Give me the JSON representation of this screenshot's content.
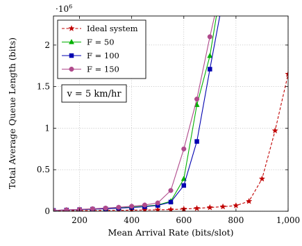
{
  "chart_data": {
    "type": "line",
    "title": "",
    "xlabel": "Mean Arrival Rate (bits/slot)",
    "ylabel": "Total Average Queue Length (bits)",
    "y_multiplier_label": "·10",
    "y_multiplier_exponent": "6",
    "xlim": [
      100,
      1000
    ],
    "ylim": [
      0,
      2.35
    ],
    "x_ticks": [
      200,
      400,
      600,
      800,
      1000
    ],
    "x_tick_labels": [
      "200",
      "400",
      "600",
      "800",
      "1,000"
    ],
    "y_ticks": [
      0,
      0.5,
      1,
      1.5,
      2
    ],
    "y_tick_labels": [
      "0",
      "0.5",
      "1",
      "1.5",
      "2"
    ],
    "grid": true,
    "legend_position": "top-left",
    "annotation": "v = 5 km/hr",
    "series": [
      {
        "name": "Ideal system",
        "color": "#c00000",
        "marker": "star",
        "dashed": true,
        "x": [
          100,
          150,
          200,
          250,
          300,
          350,
          400,
          450,
          500,
          550,
          600,
          650,
          700,
          750,
          800,
          850,
          900,
          950,
          1000
        ],
        "y": [
          0.005,
          0.007,
          0.008,
          0.01,
          0.011,
          0.012,
          0.013,
          0.015,
          0.017,
          0.02,
          0.027,
          0.035,
          0.045,
          0.055,
          0.068,
          0.12,
          0.39,
          0.97,
          1.65
        ]
      },
      {
        "name": "F = 50",
        "color": "#00b000",
        "marker": "triangle",
        "dashed": false,
        "x": [
          100,
          150,
          200,
          250,
          300,
          350,
          400,
          450,
          500,
          550,
          600,
          650,
          700,
          725
        ],
        "y": [
          0.01,
          0.015,
          0.02,
          0.025,
          0.032,
          0.04,
          0.05,
          0.06,
          0.075,
          0.12,
          0.39,
          1.28,
          1.87,
          2.35
        ]
      },
      {
        "name": "F = 100",
        "color": "#0000b0",
        "marker": "square",
        "dashed": false,
        "x": [
          100,
          150,
          200,
          250,
          300,
          350,
          400,
          450,
          500,
          550,
          600,
          650,
          700,
          738
        ],
        "y": [
          0.01,
          0.015,
          0.02,
          0.025,
          0.03,
          0.037,
          0.045,
          0.055,
          0.07,
          0.11,
          0.31,
          0.84,
          1.71,
          2.35
        ]
      },
      {
        "name": "F = 150",
        "color": "#b04a8c",
        "marker": "circle",
        "dashed": false,
        "x": [
          100,
          150,
          200,
          250,
          300,
          350,
          400,
          450,
          500,
          550,
          600,
          650,
          700,
          718
        ],
        "y": [
          0.01,
          0.017,
          0.023,
          0.03,
          0.038,
          0.048,
          0.06,
          0.075,
          0.1,
          0.25,
          0.75,
          1.35,
          2.1,
          2.35
        ]
      }
    ]
  }
}
